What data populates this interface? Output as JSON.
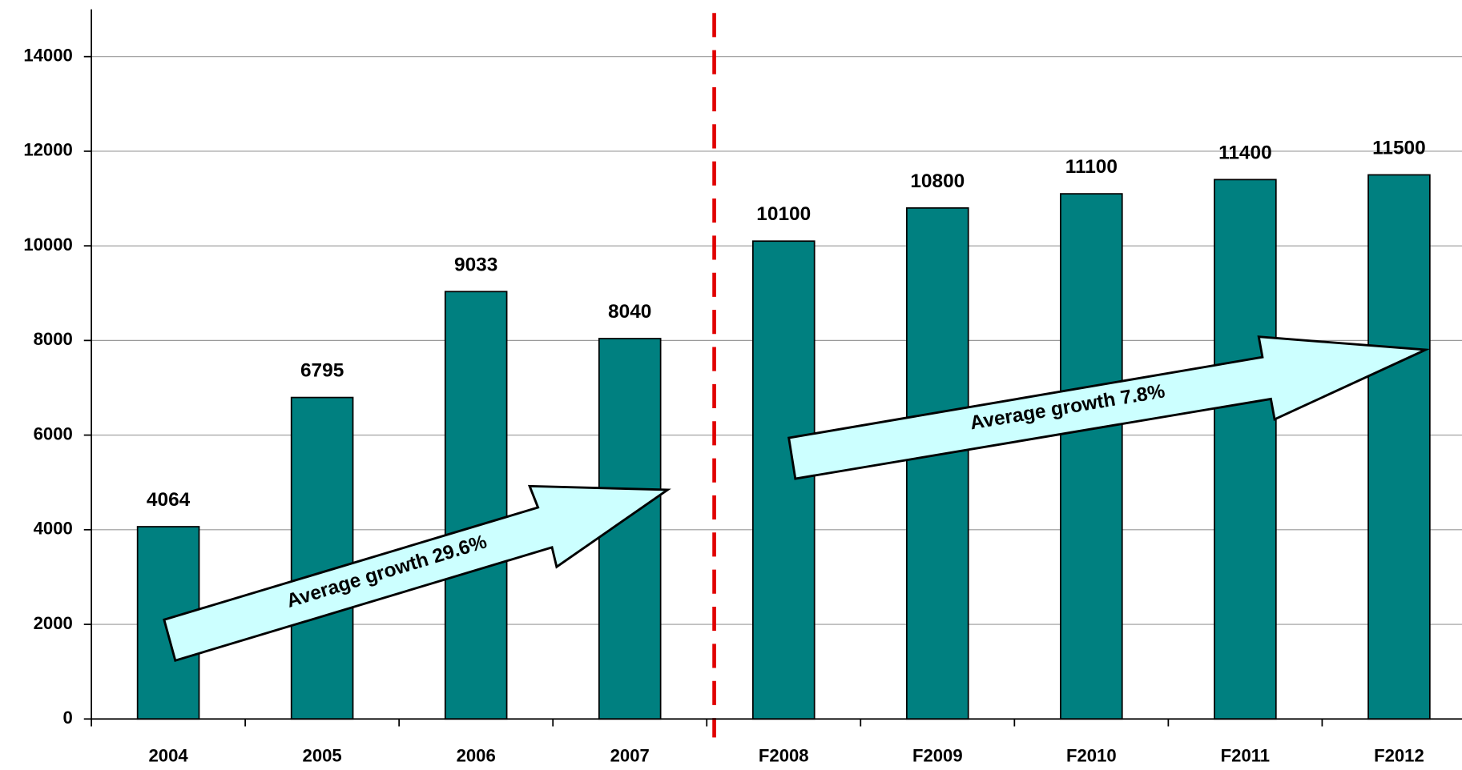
{
  "chart_data": {
    "type": "bar",
    "categories": [
      "2004",
      "2005",
      "2006",
      "2007",
      "F2008",
      "F2009",
      "F2010",
      "F2011",
      "F2012"
    ],
    "values": [
      4064,
      6795,
      9033,
      8040,
      10100,
      10800,
      11100,
      11400,
      11500
    ],
    "color": "#008080",
    "ylim": [
      0,
      15000
    ],
    "yticks": [
      0,
      2000,
      4000,
      6000,
      8000,
      10000,
      12000,
      14000
    ],
    "grid": true,
    "annotations": [
      "Average growth 29.6%",
      "Average growth 7.8%"
    ]
  }
}
